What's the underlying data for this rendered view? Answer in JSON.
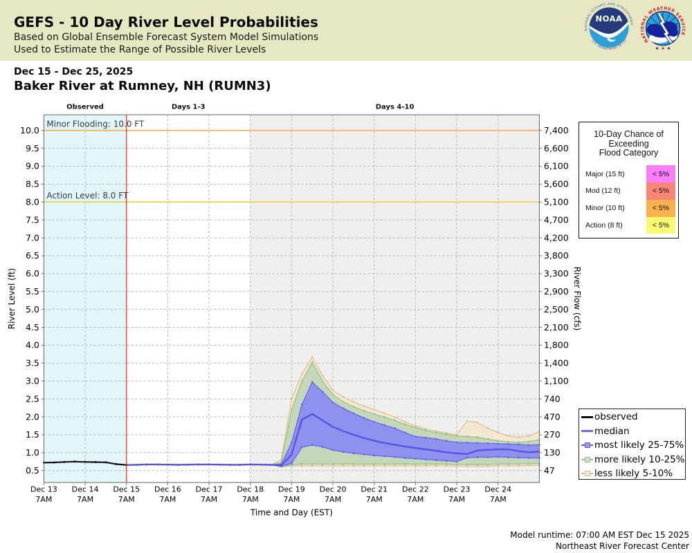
{
  "header": {
    "title": "GEFS - 10 Day River Level Probabilities",
    "subtitle1": "Based on Global Ensemble Forecast System Model Simulations",
    "subtitle2": "Used to Estimate the Range of Possible River Levels",
    "bg_color": "#e7e7c1"
  },
  "logos": {
    "noaa": {
      "text": "NOAA",
      "ring_top": "NATIONAL OCEANIC AND ATMOSPHERIC",
      "ring_bottom": "U.S. DEPARTMENT OF COMMERCE"
    },
    "nws": {
      "ring": "NATIONAL WEATHER SERVICE"
    }
  },
  "station": {
    "date_range": "Dec 15 - Dec 25, 2025",
    "name": "Baker River at Rumney, NH (RUMN3)"
  },
  "flood_panel": {
    "title_lines": [
      "10-Day Chance of",
      "Exceeding",
      "Flood Category"
    ],
    "rows": [
      {
        "label": "Major (15 ft)",
        "value": "< 5%",
        "color": "#f97df9"
      },
      {
        "label": "Mod (12 ft)",
        "value": "< 5%",
        "color": "#f98478"
      },
      {
        "label": "Minor (10 ft)",
        "value": "< 5%",
        "color": "#f9b04e"
      },
      {
        "label": "Action (8 ft)",
        "value": "< 5%",
        "color": "#fafa72"
      }
    ]
  },
  "legend": {
    "items": [
      {
        "label": "observed",
        "type": "line",
        "color": "#111111"
      },
      {
        "label": "median",
        "type": "line",
        "color": "#6c6cf0"
      },
      {
        "label": "most likely 25-75%",
        "type": "band",
        "color": "#5d5dde",
        "fill": "#9a9af0"
      },
      {
        "label": "more likely 10-25%",
        "type": "band",
        "color": "#94c18c",
        "fill": "#cfdec4"
      },
      {
        "label": "less likely 5-10%",
        "type": "band",
        "color": "#ddbe91",
        "fill": "#f4e8d1"
      }
    ]
  },
  "footer": {
    "runtime": "Model runtime: 07:00 AM EST Dec 15 2025",
    "center": "Northeast River Forecast Center"
  },
  "chart_data": {
    "type": "line",
    "title": "",
    "xlabel": "Time and Day (EST)",
    "ylabel_left": "River Level (ft)",
    "ylabel_right": "River Flow (cfs)",
    "x_unit": "days since Dec 13 7AM EST",
    "xlim": [
      0,
      12
    ],
    "ylim": [
      0.166,
      10.437
    ],
    "grid": true,
    "grid_color": "#bbbbbb",
    "x_ticks": [
      {
        "t": 0,
        "l1": "Dec 13",
        "l2": "7AM"
      },
      {
        "t": 1,
        "l1": "Dec 14",
        "l2": "7AM"
      },
      {
        "t": 2,
        "l1": "Dec 15",
        "l2": "7AM"
      },
      {
        "t": 3,
        "l1": "Dec 16",
        "l2": "7AM"
      },
      {
        "t": 4,
        "l1": "Dec 17",
        "l2": "7AM"
      },
      {
        "t": 5,
        "l1": "Dec 18",
        "l2": "7AM"
      },
      {
        "t": 6,
        "l1": "Dec 19",
        "l2": "7AM"
      },
      {
        "t": 7,
        "l1": "Dec 20",
        "l2": "7AM"
      },
      {
        "t": 8,
        "l1": "Dec 21",
        "l2": "7AM"
      },
      {
        "t": 9,
        "l1": "Dec 22",
        "l2": "7AM"
      },
      {
        "t": 10,
        "l1": "Dec 23",
        "l2": "7AM"
      },
      {
        "t": 11,
        "l1": "Dec 24",
        "l2": "7AM"
      }
    ],
    "y_ticks": [
      {
        "level": 0.5,
        "flow": "47"
      },
      {
        "level": 1.0,
        "flow": "130"
      },
      {
        "level": 1.5,
        "flow": "270"
      },
      {
        "level": 2.0,
        "flow": "470"
      },
      {
        "level": 2.5,
        "flow": "740"
      },
      {
        "level": 3.0,
        "flow": "1,100"
      },
      {
        "level": 3.5,
        "flow": "1,400"
      },
      {
        "level": 4.0,
        "flow": "1,800"
      },
      {
        "level": 4.5,
        "flow": "2,100"
      },
      {
        "level": 5.0,
        "flow": "2,500"
      },
      {
        "level": 5.5,
        "flow": "2,900"
      },
      {
        "level": 6.0,
        "flow": "3,300"
      },
      {
        "level": 6.5,
        "flow": "3,800"
      },
      {
        "level": 7.0,
        "flow": "4,200"
      },
      {
        "level": 7.5,
        "flow": "4,700"
      },
      {
        "level": 8.0,
        "flow": "5,100"
      },
      {
        "level": 8.5,
        "flow": "5,600"
      },
      {
        "level": 9.0,
        "flow": "6,100"
      },
      {
        "level": 9.5,
        "flow": "6,600"
      },
      {
        "level": 10.0,
        "flow": "7,400"
      }
    ],
    "regions": [
      {
        "label": "Observed",
        "from": 0,
        "to": 2,
        "fill": "#e2f6f8"
      },
      {
        "label": "Days 1-3",
        "from": 2,
        "to": 5,
        "fill": "#ffffff"
      },
      {
        "label": "Days 4-10",
        "from": 5,
        "to": 12,
        "fill": "#efefee"
      }
    ],
    "thresholds": [
      {
        "label": "Minor Flooding: 10.0 FT",
        "level": 10.0,
        "color": "#ffa448"
      },
      {
        "label": "Action Level: 8.0 FT",
        "level": 8.0,
        "color": "#f2ca30"
      }
    ],
    "forecast_start_t": 2,
    "forecast_line_color": "#e93535",
    "series": {
      "observed": {
        "x": [
          0,
          0.25,
          0.5,
          0.75,
          1.0,
          1.25,
          1.5,
          1.75,
          2.0
        ],
        "y": [
          0.72,
          0.725,
          0.74,
          0.75,
          0.74,
          0.735,
          0.73,
          0.68,
          0.655
        ]
      },
      "forecast_x": [
        2.0,
        2.25,
        2.5,
        2.75,
        3.0,
        3.25,
        3.5,
        3.75,
        4.0,
        4.25,
        4.5,
        4.75,
        5.0,
        5.25,
        5.5,
        5.75,
        6.0,
        6.25,
        6.5,
        6.75,
        7.0,
        7.25,
        7.5,
        7.75,
        8.0,
        8.25,
        8.5,
        8.75,
        9.0,
        9.25,
        9.5,
        9.75,
        10.0,
        10.25,
        10.5,
        10.75,
        11.0,
        11.25,
        11.5,
        11.75,
        12.0
      ],
      "median": [
        0.655,
        0.66,
        0.67,
        0.67,
        0.665,
        0.66,
        0.665,
        0.67,
        0.67,
        0.665,
        0.66,
        0.66,
        0.67,
        0.665,
        0.66,
        0.64,
        0.95,
        1.92,
        2.08,
        1.9,
        1.72,
        1.6,
        1.5,
        1.41,
        1.33,
        1.27,
        1.22,
        1.17,
        1.13,
        1.09,
        1.05,
        1.01,
        0.98,
        0.96,
        1.06,
        1.08,
        1.09,
        1.09,
        1.04,
        1.01,
        1.03
      ],
      "p75": [
        0.655,
        0.66,
        0.67,
        0.67,
        0.665,
        0.66,
        0.665,
        0.67,
        0.67,
        0.665,
        0.66,
        0.66,
        0.67,
        0.665,
        0.66,
        0.68,
        1.28,
        2.35,
        2.97,
        2.7,
        2.4,
        2.24,
        2.1,
        1.97,
        1.86,
        1.77,
        1.68,
        1.56,
        1.45,
        1.42,
        1.38,
        1.33,
        1.29,
        1.28,
        1.27,
        1.26,
        1.25,
        1.24,
        1.23,
        1.21,
        1.22
      ],
      "p25": [
        0.655,
        0.66,
        0.67,
        0.67,
        0.665,
        0.66,
        0.665,
        0.67,
        0.67,
        0.665,
        0.66,
        0.66,
        0.67,
        0.665,
        0.66,
        0.62,
        0.7,
        1.15,
        1.21,
        1.16,
        1.07,
        1.02,
        0.98,
        0.95,
        0.92,
        0.9,
        0.88,
        0.85,
        0.83,
        0.81,
        0.79,
        0.77,
        0.75,
        0.86,
        0.87,
        0.87,
        0.88,
        0.87,
        0.86,
        0.85,
        0.85
      ],
      "p90": [
        0.655,
        0.66,
        0.67,
        0.67,
        0.665,
        0.66,
        0.665,
        0.67,
        0.67,
        0.665,
        0.66,
        0.66,
        0.67,
        0.665,
        0.66,
        0.73,
        2.2,
        3.0,
        3.53,
        3.0,
        2.62,
        2.42,
        2.28,
        2.17,
        2.08,
        1.99,
        1.9,
        1.79,
        1.7,
        1.62,
        1.56,
        1.51,
        1.47,
        1.45,
        1.43,
        1.38,
        1.33,
        1.3,
        1.29,
        1.31,
        1.36
      ],
      "p10": [
        0.655,
        0.66,
        0.67,
        0.67,
        0.665,
        0.66,
        0.665,
        0.67,
        0.67,
        0.665,
        0.66,
        0.66,
        0.67,
        0.665,
        0.66,
        0.62,
        0.66,
        0.68,
        0.68,
        0.68,
        0.68,
        0.68,
        0.68,
        0.68,
        0.68,
        0.68,
        0.68,
        0.68,
        0.68,
        0.68,
        0.68,
        0.68,
        0.67,
        0.67,
        0.67,
        0.67,
        0.68,
        0.68,
        0.68,
        0.69,
        0.69
      ],
      "p95": [
        0.655,
        0.66,
        0.67,
        0.67,
        0.665,
        0.66,
        0.665,
        0.67,
        0.67,
        0.665,
        0.66,
        0.66,
        0.67,
        0.665,
        0.66,
        0.8,
        2.5,
        3.2,
        3.67,
        3.15,
        2.74,
        2.55,
        2.42,
        2.3,
        2.2,
        2.1,
        1.99,
        1.86,
        1.75,
        1.66,
        1.6,
        1.55,
        1.5,
        1.88,
        1.84,
        1.68,
        1.56,
        1.46,
        1.43,
        1.46,
        1.59
      ],
      "p5": [
        0.655,
        0.66,
        0.67,
        0.67,
        0.665,
        0.66,
        0.665,
        0.67,
        0.67,
        0.665,
        0.66,
        0.66,
        0.67,
        0.665,
        0.66,
        0.6,
        0.63,
        0.63,
        0.63,
        0.63,
        0.63,
        0.63,
        0.63,
        0.63,
        0.63,
        0.63,
        0.63,
        0.63,
        0.63,
        0.63,
        0.63,
        0.63,
        0.62,
        0.62,
        0.62,
        0.62,
        0.63,
        0.63,
        0.63,
        0.64,
        0.64
      ]
    },
    "colors": {
      "observed": "#111111",
      "median": "#5454e6",
      "band_25_75": {
        "edge": "#6565e8",
        "fill": "#9090ee"
      },
      "band_10_25": {
        "edge": "#92c08a",
        "fill": "#c6d7b9"
      },
      "band_5_10": {
        "edge": "#debd90",
        "fill": "#f3e8d2"
      }
    },
    "legend_position": "outside right bottom"
  }
}
